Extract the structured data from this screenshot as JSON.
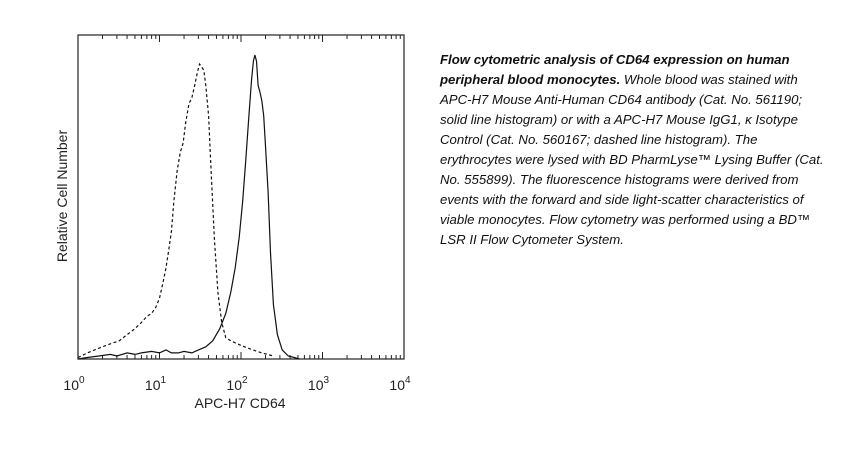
{
  "chart_data": {
    "type": "line",
    "xscale": "log",
    "xlim": [
      1,
      10000
    ],
    "ylim": [
      0,
      1
    ],
    "xlabel": "APC-H7 CD64",
    "ylabel": "Relative Cell Number",
    "xticks": [
      {
        "base": "10",
        "exp": "0"
      },
      {
        "base": "10",
        "exp": "1"
      },
      {
        "base": "10",
        "exp": "2"
      },
      {
        "base": "10",
        "exp": "3"
      },
      {
        "base": "10",
        "exp": "4"
      }
    ],
    "grid": false,
    "series": [
      {
        "style": "dashed",
        "x": [
          1,
          1.3,
          1.6,
          2.0,
          2.5,
          3.2,
          4.0,
          5.0,
          6.0,
          7.0,
          8.0,
          9.0,
          10.0,
          11.0,
          12.0,
          13.0,
          14.0,
          15.0,
          16.5,
          18.0,
          19.5,
          21.0,
          23.0,
          25.0,
          27.0,
          29.0,
          31.0,
          33.0,
          35.0,
          37.0,
          40.0,
          43.0,
          47.0,
          52.0,
          58.0,
          65.0,
          75.0,
          90.0,
          110.0,
          140.0,
          180.0,
          250.0
        ],
        "y": [
          0.005,
          0.02,
          0.03,
          0.04,
          0.05,
          0.06,
          0.08,
          0.1,
          0.12,
          0.14,
          0.15,
          0.17,
          0.2,
          0.25,
          0.3,
          0.36,
          0.42,
          0.52,
          0.62,
          0.68,
          0.71,
          0.78,
          0.84,
          0.86,
          0.9,
          0.94,
          0.97,
          0.96,
          0.95,
          0.9,
          0.8,
          0.62,
          0.4,
          0.22,
          0.12,
          0.07,
          0.06,
          0.05,
          0.04,
          0.03,
          0.02,
          0.01
        ]
      },
      {
        "style": "solid",
        "x": [
          1,
          1.3,
          1.8,
          2.5,
          3.0,
          4.0,
          5.0,
          6.0,
          8.0,
          10.0,
          12.0,
          14.0,
          17.0,
          20.0,
          25.0,
          30.0,
          37.0,
          45.0,
          55.0,
          65.0,
          75.0,
          85.0,
          95.0,
          105.0,
          115.0,
          125.0,
          135.0,
          142.0,
          148.0,
          155.0,
          162.0,
          170.0,
          180.0,
          190.0,
          200.0,
          215.0,
          230.0,
          250.0,
          280.0,
          320.0,
          380.0,
          450.0,
          520.0
        ],
        "y": [
          0.0,
          0.005,
          0.01,
          0.015,
          0.01,
          0.02,
          0.015,
          0.02,
          0.025,
          0.02,
          0.03,
          0.02,
          0.02,
          0.025,
          0.02,
          0.03,
          0.04,
          0.06,
          0.1,
          0.15,
          0.22,
          0.3,
          0.4,
          0.52,
          0.66,
          0.8,
          0.92,
          0.98,
          1.0,
          0.98,
          0.9,
          0.88,
          0.85,
          0.8,
          0.7,
          0.55,
          0.35,
          0.18,
          0.08,
          0.03,
          0.01,
          0.005,
          0.0
        ]
      }
    ]
  },
  "caption": {
    "bold": "Flow cytometric analysis of CD64 expression on human peripheral blood monocytes.",
    "text": " Whole blood was stained with APC-H7 Mouse Anti-Human CD64 antibody (Cat. No. 561190; solid line histogram) or with a APC-H7 Mouse IgG1, κ Isotype Control (Cat. No. 560167; dashed line histogram). The erythrocytes were lysed with BD PharmLyse™ Lysing Buffer (Cat. No. 555899). The fluorescence histograms were derived from events with the forward and side light-scatter characteristics of viable monocytes. Flow cytometry was performed using a BD™ LSR II Flow Cytometer System."
  }
}
